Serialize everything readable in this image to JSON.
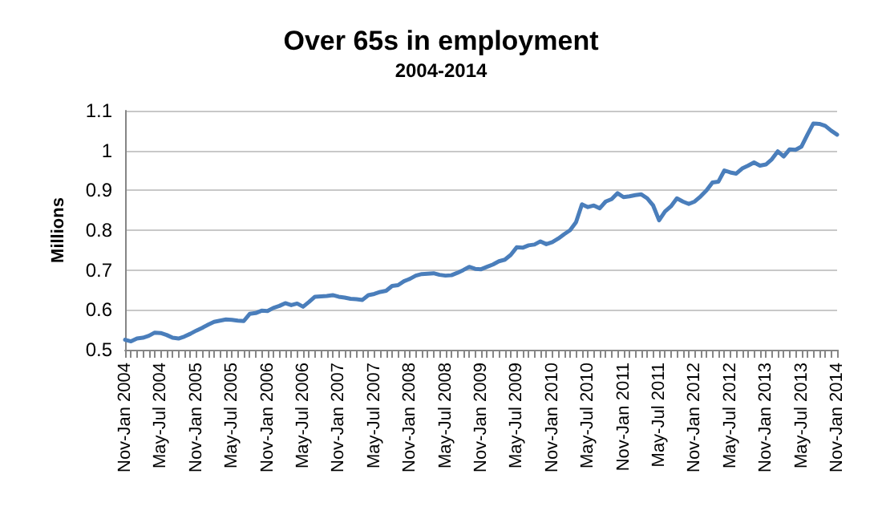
{
  "chart_data": {
    "type": "line",
    "title": "Over 65s in employment",
    "subtitle": "2004-2014",
    "ylabel": "Millions",
    "categories": [
      "Nov-Jan 2004",
      null,
      null,
      null,
      null,
      null,
      "May-Jul 2004",
      null,
      null,
      null,
      null,
      null,
      "Nov-Jan 2005",
      null,
      null,
      null,
      null,
      null,
      "May-Jul 2005",
      null,
      null,
      null,
      null,
      null,
      "Nov-Jan 2006",
      null,
      null,
      null,
      null,
      null,
      "May-Jul 2006",
      null,
      null,
      null,
      null,
      null,
      "Nov-Jan 2007",
      null,
      null,
      null,
      null,
      null,
      "May-Jul 2007",
      null,
      null,
      null,
      null,
      null,
      "Nov-Jan 2008",
      null,
      null,
      null,
      null,
      null,
      "May-Jul 2008",
      null,
      null,
      null,
      null,
      null,
      "Nov-Jan 2009",
      null,
      null,
      null,
      null,
      null,
      "May-Jul 2009",
      null,
      null,
      null,
      null,
      null,
      "Nov-Jan 2010",
      null,
      null,
      null,
      null,
      null,
      "May-Jul 2010",
      null,
      null,
      null,
      null,
      null,
      "Nov-Jan 2011",
      null,
      null,
      null,
      null,
      null,
      "May-Jul 2011",
      null,
      null,
      null,
      null,
      null,
      "Nov-Jan 2012",
      null,
      null,
      null,
      null,
      null,
      "May-Jul 2012",
      null,
      null,
      null,
      null,
      null,
      "Nov-Jan 2013",
      null,
      null,
      null,
      null,
      null,
      "May-Jul 2013",
      null,
      null,
      null,
      null,
      null,
      "Nov-Jan 2014"
    ],
    "series": [
      {
        "color": "#4a7ebb",
        "values": [
          0.525,
          0.521,
          0.528,
          0.53,
          0.535,
          0.543,
          0.542,
          0.537,
          0.53,
          0.528,
          0.533,
          0.54,
          0.548,
          0.555,
          0.563,
          0.57,
          0.573,
          0.576,
          0.575,
          0.573,
          0.572,
          0.59,
          0.592,
          0.598,
          0.597,
          0.605,
          0.61,
          0.617,
          0.612,
          0.616,
          0.608,
          0.62,
          0.633,
          0.634,
          0.635,
          0.637,
          0.633,
          0.631,
          0.628,
          0.627,
          0.625,
          0.637,
          0.64,
          0.645,
          0.648,
          0.66,
          0.662,
          0.672,
          0.678,
          0.686,
          0.69,
          0.691,
          0.692,
          0.688,
          0.686,
          0.687,
          0.693,
          0.7,
          0.708,
          0.703,
          0.702,
          0.708,
          0.714,
          0.722,
          0.726,
          0.738,
          0.757,
          0.756,
          0.762,
          0.764,
          0.772,
          0.765,
          0.77,
          0.779,
          0.79,
          0.8,
          0.82,
          0.865,
          0.858,
          0.862,
          0.855,
          0.872,
          0.878,
          0.893,
          0.883,
          0.885,
          0.888,
          0.89,
          0.88,
          0.862,
          0.825,
          0.847,
          0.86,
          0.88,
          0.872,
          0.866,
          0.872,
          0.885,
          0.9,
          0.92,
          0.922,
          0.95,
          0.945,
          0.942,
          0.955,
          0.962,
          0.97,
          0.962,
          0.965,
          0.978,
          0.998,
          0.985,
          1.003,
          1.002,
          1.01,
          1.04,
          1.068,
          1.067,
          1.062,
          1.05,
          1.04
        ]
      }
    ],
    "ylim": [
      0.5,
      1.1
    ],
    "yticks": [
      0.5,
      0.6,
      0.7,
      0.8,
      0.9,
      1,
      1.1
    ],
    "grid": "y",
    "marker": "none",
    "line_style": "solid"
  }
}
